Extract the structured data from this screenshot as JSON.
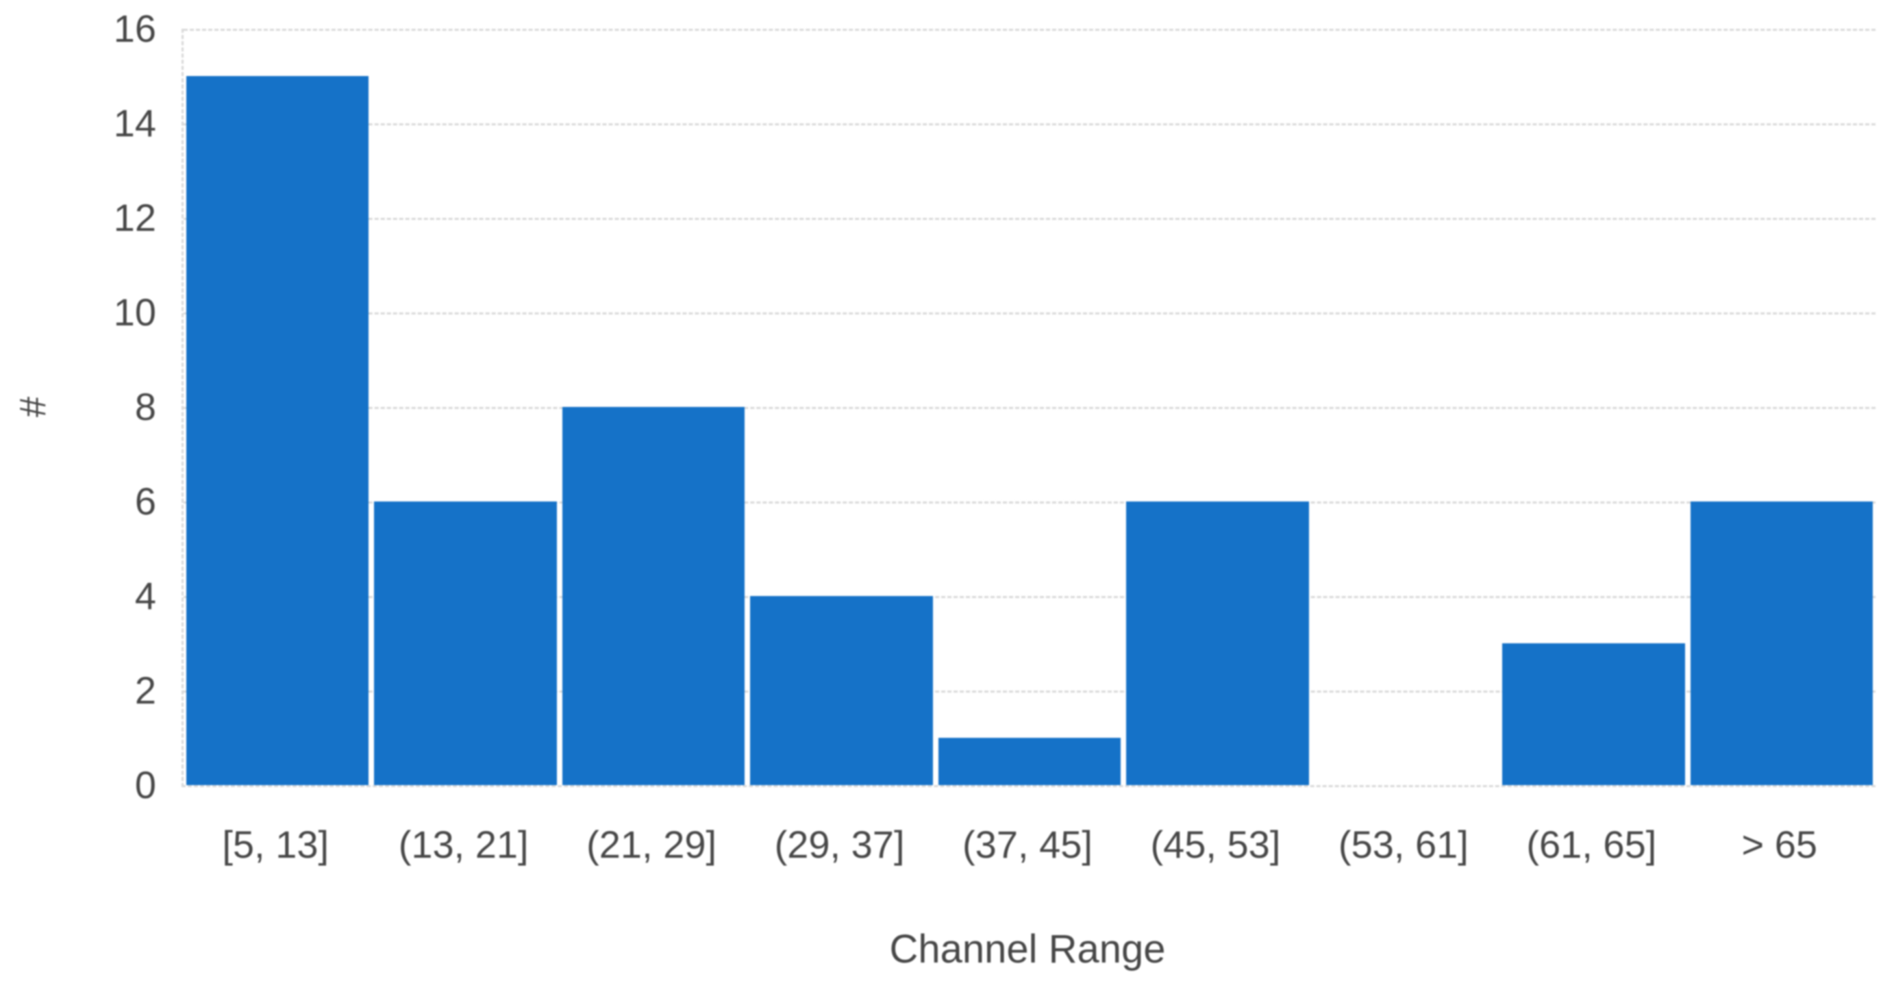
{
  "chart_data": {
    "type": "bar",
    "title": "",
    "xlabel": "Channel Range",
    "ylabel": "#",
    "categories": [
      "[5, 13]",
      "(13, 21]",
      "(21, 29]",
      "(29, 37]",
      "(37, 45]",
      "(45, 53]",
      "(53, 61]",
      "(61, 65]",
      "> 65"
    ],
    "values": [
      15,
      6,
      8,
      4,
      1,
      6,
      0,
      3,
      6
    ],
    "ylim": [
      0,
      16
    ],
    "yticks": [
      0,
      2,
      4,
      6,
      8,
      10,
      12,
      14,
      16
    ],
    "grid": "horizontal dashed gridlines, dashed left and bottom axis lines, no right/top border",
    "legend": "none",
    "colors": {
      "bar": "#1572c8",
      "grid": "#d9d9d9",
      "text": "#474747"
    }
  }
}
